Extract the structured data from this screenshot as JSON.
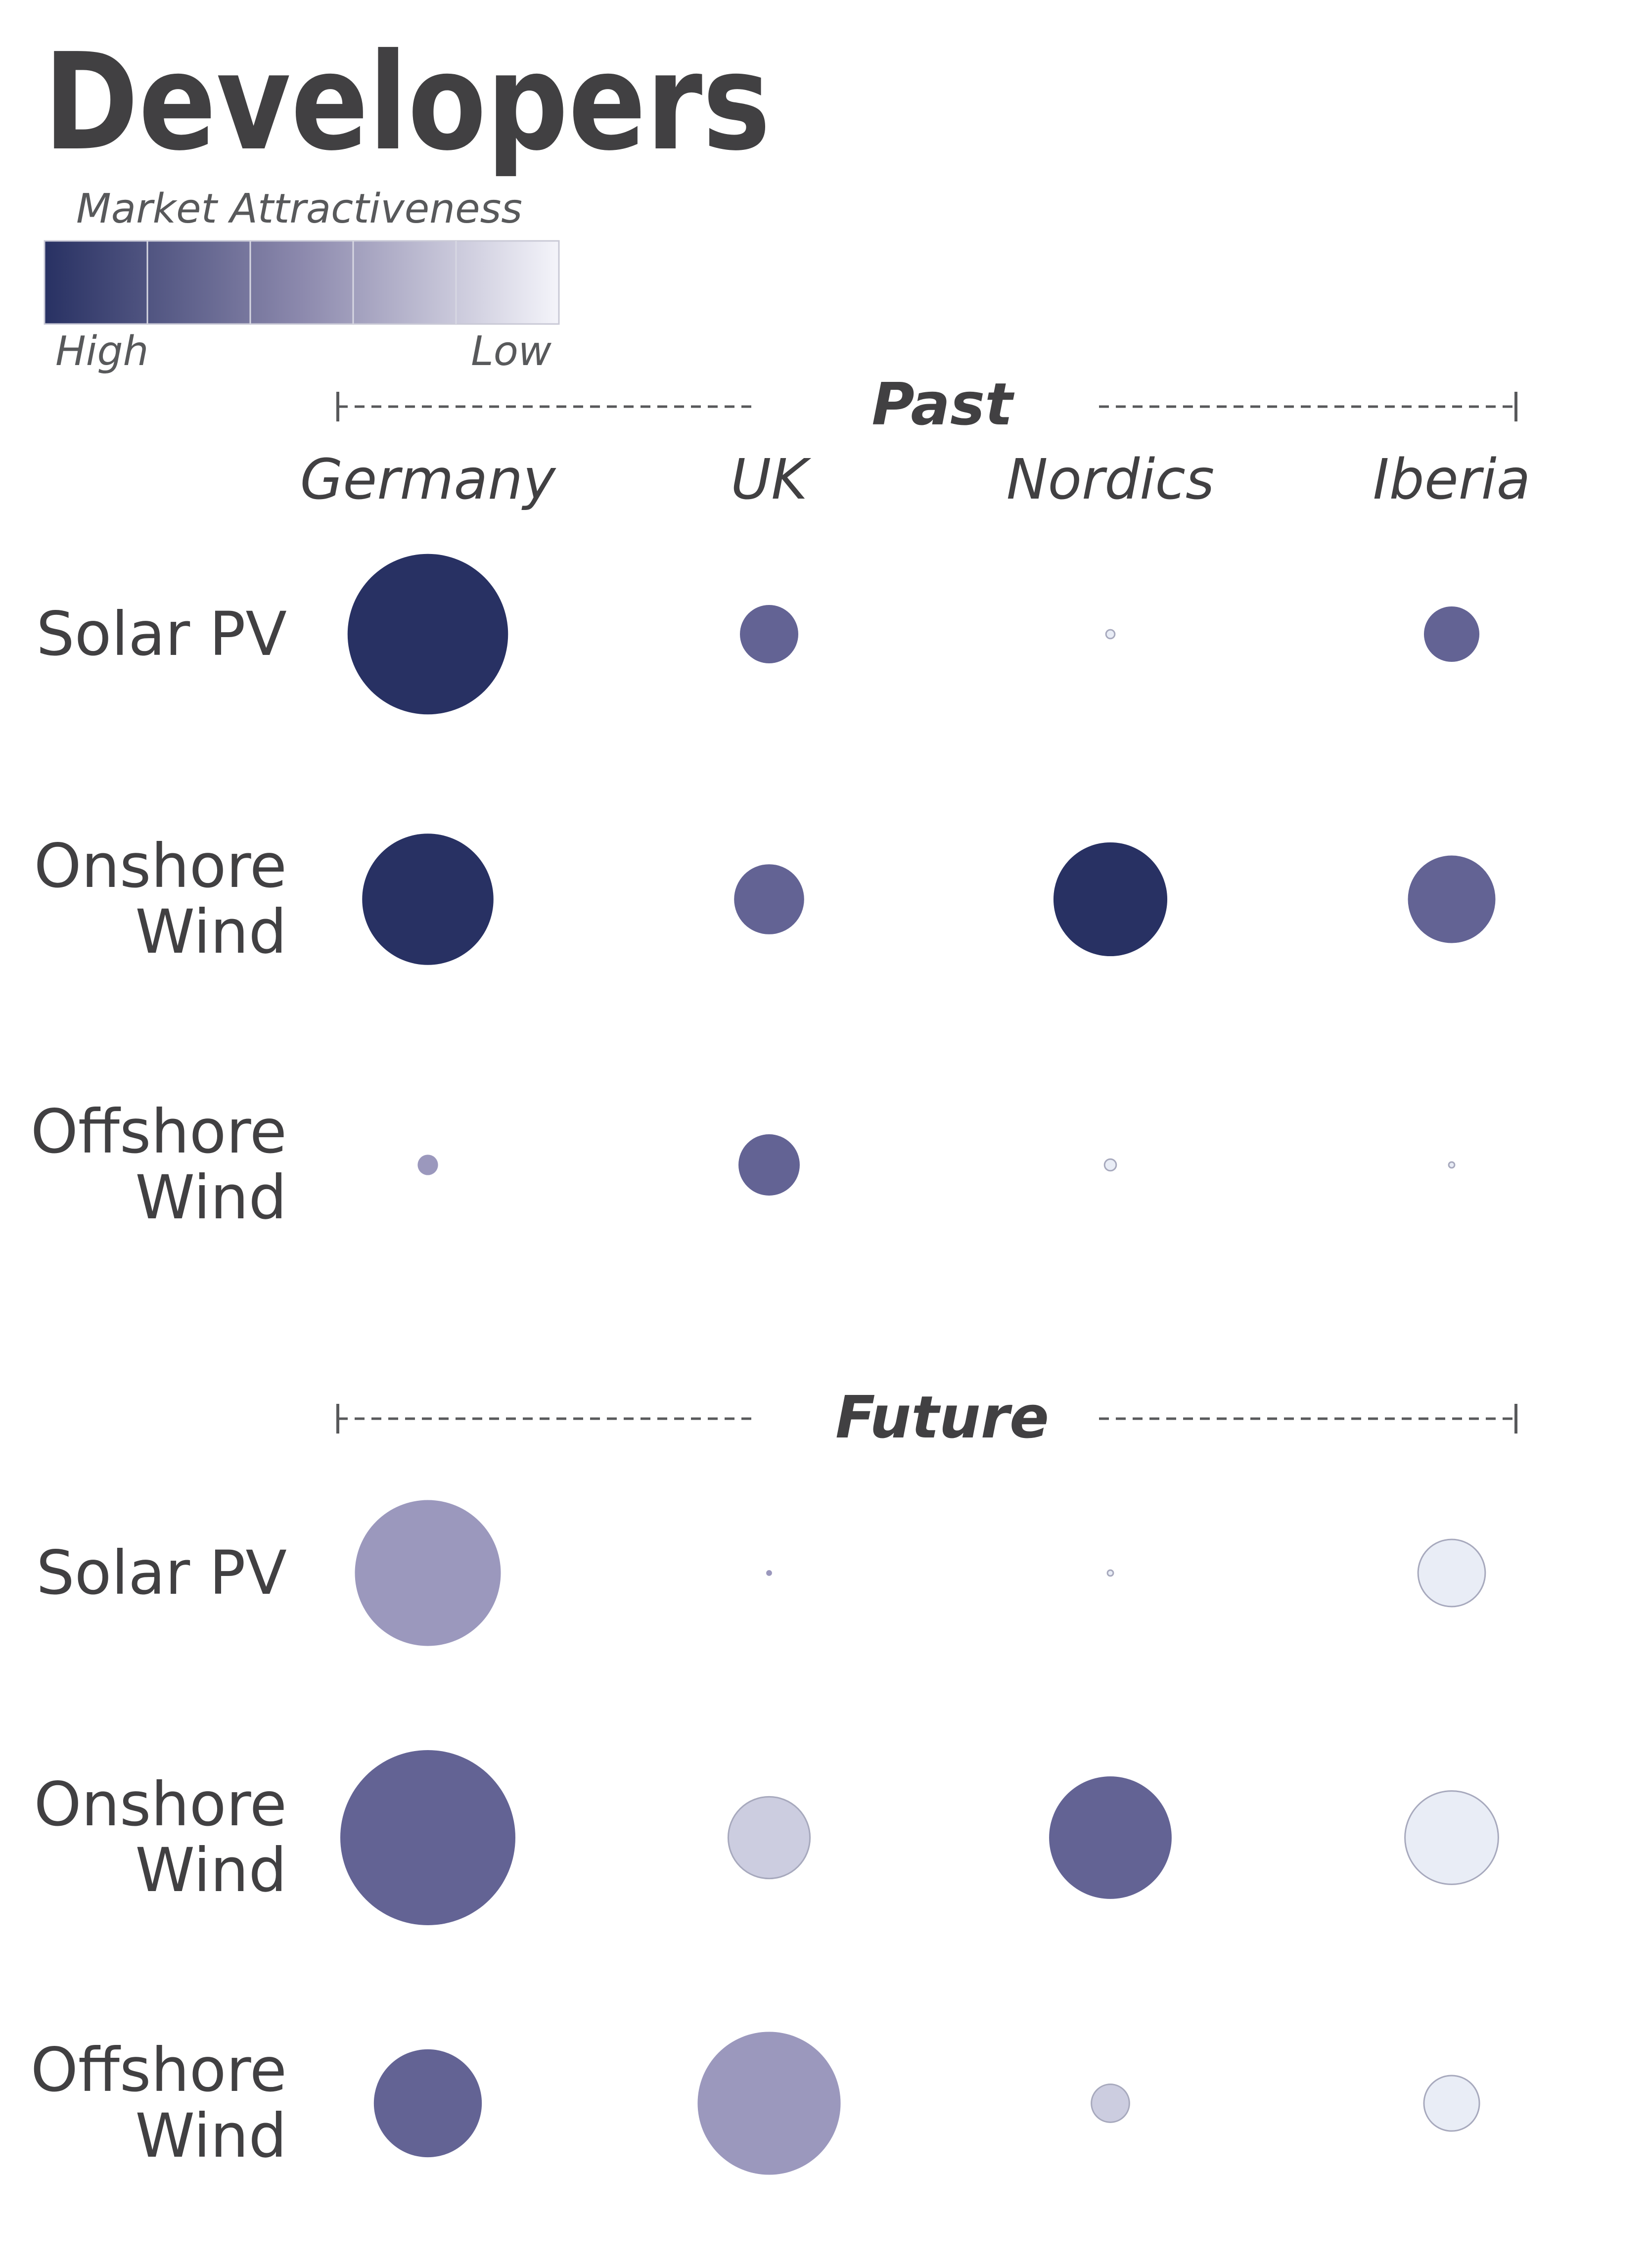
{
  "title": "Developers",
  "legend": {
    "title": "Market Attractiveness",
    "high_label": "High",
    "low_label": "Low",
    "colors": [
      "#283163",
      "#545488",
      "#8c89ad",
      "#b9b4cc",
      "#e2e2ee"
    ]
  },
  "chart_data": {
    "type": "bubble-matrix",
    "columns": [
      "Germany",
      "UK",
      "Nordics",
      "Iberia"
    ],
    "rows": [
      "Solar PV",
      "Onshore Wind",
      "Offshore Wind"
    ],
    "color_levels": {
      "dark": "#283163",
      "medium": "#636394",
      "light": "#9b98bd",
      "pale": "#cccde0",
      "faint": "#e9edf6"
    },
    "panels": [
      {
        "period": "Past",
        "cells": [
          [
            {
              "size": 55,
              "level": "dark"
            },
            {
              "size": 20,
              "level": "medium"
            },
            {
              "size": 3,
              "level": "faint"
            },
            {
              "size": 19,
              "level": "medium"
            }
          ],
          [
            {
              "size": 45,
              "level": "dark"
            },
            {
              "size": 24,
              "level": "medium"
            },
            {
              "size": 39,
              "level": "dark"
            },
            {
              "size": 30,
              "level": "medium"
            }
          ],
          [
            {
              "size": 7,
              "level": "light"
            },
            {
              "size": 21,
              "level": "medium"
            },
            {
              "size": 4,
              "level": "faint"
            },
            {
              "size": 2,
              "level": "faint"
            }
          ]
        ]
      },
      {
        "period": "Future",
        "cells": [
          [
            {
              "size": 50,
              "level": "light"
            },
            {
              "size": 2,
              "level": "light"
            },
            {
              "size": 2,
              "level": "faint"
            },
            {
              "size": 23,
              "level": "faint"
            }
          ],
          [
            {
              "size": 60,
              "level": "medium"
            },
            {
              "size": 28,
              "level": "pale"
            },
            {
              "size": 42,
              "level": "medium"
            },
            {
              "size": 32,
              "level": "faint"
            }
          ],
          [
            {
              "size": 37,
              "level": "medium"
            },
            {
              "size": 49,
              "level": "light"
            },
            {
              "size": 13,
              "level": "pale"
            },
            {
              "size": 19,
              "level": "faint"
            }
          ]
        ]
      }
    ]
  }
}
